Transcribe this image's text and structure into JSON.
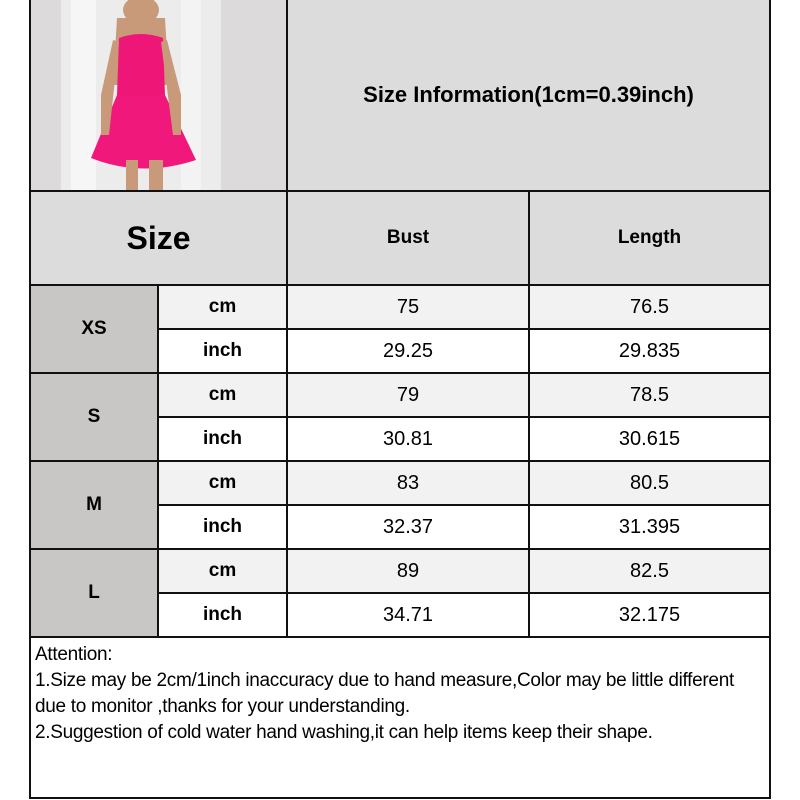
{
  "title": "Size Information(1cm=0.39inch)",
  "header": {
    "size": "Size",
    "bust": "Bust",
    "length": "Length"
  },
  "product_image": {
    "description_icon": "pink-dress-photo",
    "dress_color": "#f0187a"
  },
  "rows": [
    {
      "size": "XS",
      "cm": {
        "unit": "cm",
        "bust": "75",
        "length": "76.5"
      },
      "inch": {
        "unit": "inch",
        "bust": "29.25",
        "length": "29.835"
      }
    },
    {
      "size": "S",
      "cm": {
        "unit": "cm",
        "bust": "79",
        "length": "78.5"
      },
      "inch": {
        "unit": "inch",
        "bust": "30.81",
        "length": "30.615"
      }
    },
    {
      "size": "M",
      "cm": {
        "unit": "cm",
        "bust": "83",
        "length": "80.5"
      },
      "inch": {
        "unit": "inch",
        "bust": "32.37",
        "length": "31.395"
      }
    },
    {
      "size": "L",
      "cm": {
        "unit": "cm",
        "bust": "89",
        "length": "82.5"
      },
      "inch": {
        "unit": "inch",
        "bust": "34.71",
        "length": "32.175"
      }
    }
  ],
  "attention": {
    "heading": "Attention:",
    "line1": "1.Size may be 2cm/1inch inaccuracy due to hand measure,Color may be little different due to monitor ,thanks for your understanding.",
    "line2": "2.Suggestion of cold water hand washing,it can help items keep their shape."
  }
}
